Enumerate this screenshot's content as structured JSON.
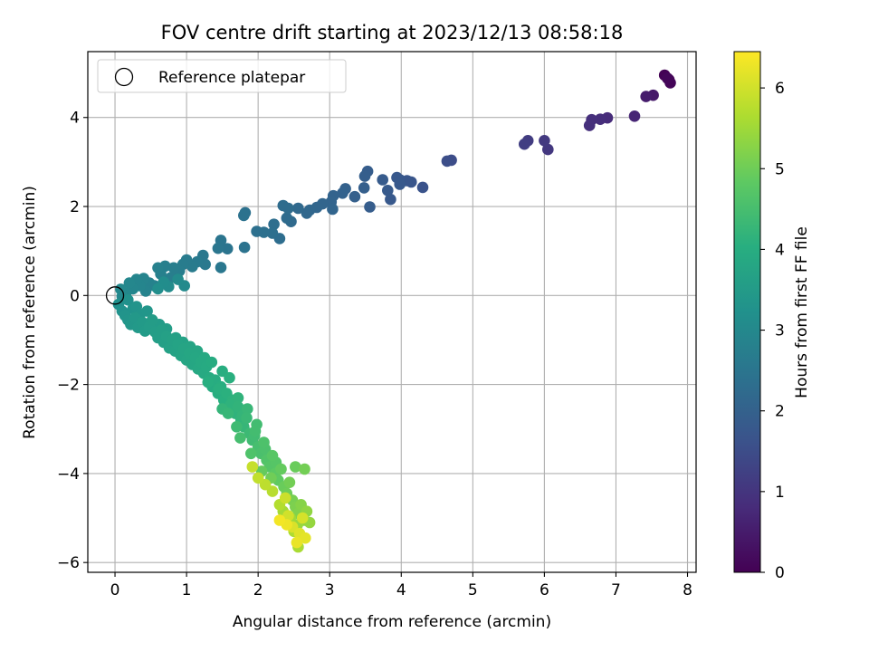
{
  "chart_data": {
    "type": "scatter",
    "title": "FOV centre drift starting at 2023/12/13 08:58:18",
    "xlabel": "Angular distance from reference (arcmin)",
    "ylabel": "Rotation from reference (arcmin)",
    "xlim": [
      -0.38,
      8.12
    ],
    "ylim": [
      -6.22,
      5.48
    ],
    "xticks": [
      "0",
      "1",
      "2",
      "3",
      "4",
      "5",
      "6",
      "7",
      "8"
    ],
    "yticks": [
      "4",
      "2",
      "0",
      "−2",
      "−4",
      "−6"
    ],
    "grid": true,
    "legend": {
      "position": "upper-left",
      "label": "Reference platepar"
    },
    "reference_point": {
      "x": 0,
      "y": 0
    },
    "colorbar": {
      "label": "Hours from first FF file",
      "range": [
        0,
        6.45
      ],
      "ticks": [
        "0",
        "1",
        "2",
        "3",
        "4",
        "5",
        "6"
      ],
      "colormap": "viridis"
    },
    "points": [
      [
        7.68,
        4.95,
        0.02
      ],
      [
        7.74,
        4.85,
        0.05
      ],
      [
        7.76,
        4.78,
        0.08
      ],
      [
        7.72,
        4.88,
        0.1
      ],
      [
        7.52,
        4.5,
        0.45
      ],
      [
        7.42,
        4.47,
        0.5
      ],
      [
        7.26,
        4.03,
        0.7
      ],
      [
        6.88,
        3.99,
        0.8
      ],
      [
        6.78,
        3.96,
        0.85
      ],
      [
        6.66,
        3.95,
        0.88
      ],
      [
        6.63,
        3.82,
        0.9
      ],
      [
        6.05,
        3.28,
        1.05
      ],
      [
        6.0,
        3.48,
        1.08
      ],
      [
        5.77,
        3.48,
        1.15
      ],
      [
        5.72,
        3.4,
        1.18
      ],
      [
        4.7,
        3.04,
        1.5
      ],
      [
        4.64,
        3.02,
        1.52
      ],
      [
        4.3,
        2.43,
        1.65
      ],
      [
        4.14,
        2.55,
        1.7
      ],
      [
        4.08,
        2.58,
        1.72
      ],
      [
        3.98,
        2.6,
        1.75
      ],
      [
        3.94,
        2.65,
        1.76
      ],
      [
        3.98,
        2.5,
        1.78
      ],
      [
        3.85,
        2.16,
        1.8
      ],
      [
        3.81,
        2.36,
        1.82
      ],
      [
        3.74,
        2.6,
        1.84
      ],
      [
        3.56,
        1.99,
        1.88
      ],
      [
        3.53,
        2.79,
        1.9
      ],
      [
        3.49,
        2.68,
        1.92
      ],
      [
        3.48,
        2.42,
        1.93
      ],
      [
        3.35,
        2.22,
        1.96
      ],
      [
        3.22,
        2.4,
        2.0
      ],
      [
        3.18,
        2.3,
        2.02
      ],
      [
        3.05,
        2.24,
        2.05
      ],
      [
        3.02,
        2.1,
        2.06
      ],
      [
        3.04,
        1.94,
        2.08
      ],
      [
        2.9,
        2.06,
        2.1
      ],
      [
        2.82,
        1.98,
        2.12
      ],
      [
        2.72,
        1.92,
        2.15
      ],
      [
        2.68,
        1.85,
        2.17
      ],
      [
        2.56,
        1.96,
        2.2
      ],
      [
        2.46,
        1.66,
        2.22
      ],
      [
        2.4,
        1.74,
        2.24
      ],
      [
        2.35,
        2.02,
        2.26
      ],
      [
        2.42,
        1.96,
        2.27
      ],
      [
        2.3,
        1.28,
        2.3
      ],
      [
        2.22,
        1.6,
        2.32
      ],
      [
        2.2,
        1.4,
        2.34
      ],
      [
        2.08,
        1.42,
        2.36
      ],
      [
        1.98,
        1.44,
        2.38
      ],
      [
        1.82,
        1.86,
        2.4
      ],
      [
        1.8,
        1.8,
        2.42
      ],
      [
        1.81,
        1.08,
        2.44
      ],
      [
        1.57,
        1.05,
        2.47
      ],
      [
        1.48,
        1.24,
        2.5
      ],
      [
        1.44,
        1.06,
        2.52
      ],
      [
        1.48,
        0.63,
        2.55
      ],
      [
        1.23,
        0.9,
        2.57
      ],
      [
        1.26,
        0.7,
        2.6
      ],
      [
        1.15,
        0.76,
        2.62
      ],
      [
        1.08,
        0.65,
        2.64
      ],
      [
        1.0,
        0.8,
        2.66
      ],
      [
        0.95,
        0.7,
        2.68
      ],
      [
        0.9,
        0.55,
        2.7
      ],
      [
        0.82,
        0.62,
        2.72
      ],
      [
        0.78,
        0.4,
        2.74
      ],
      [
        0.7,
        0.66,
        2.76
      ],
      [
        0.64,
        0.48,
        2.78
      ],
      [
        0.6,
        0.62,
        2.8
      ],
      [
        0.55,
        0.22,
        2.82
      ],
      [
        0.48,
        0.28,
        2.84
      ],
      [
        0.43,
        0.1,
        2.86
      ],
      [
        0.4,
        0.38,
        2.88
      ],
      [
        0.35,
        0.22,
        2.9
      ],
      [
        0.3,
        0.36,
        2.92
      ],
      [
        0.25,
        0.15,
        2.94
      ],
      [
        0.2,
        0.28,
        2.96
      ],
      [
        0.15,
        0.05,
        2.98
      ],
      [
        0.1,
        -0.02,
        3.0
      ],
      [
        0.08,
        0.14,
        3.02
      ],
      [
        0.97,
        0.22,
        3.05
      ],
      [
        0.88,
        0.36,
        3.07
      ],
      [
        0.75,
        0.2,
        3.1
      ],
      [
        0.68,
        0.3,
        3.12
      ],
      [
        0.6,
        0.15,
        3.14
      ],
      [
        0.05,
        -0.2,
        3.2
      ],
      [
        0.1,
        -0.35,
        3.25
      ],
      [
        0.14,
        -0.45,
        3.3
      ],
      [
        0.18,
        -0.55,
        3.35
      ],
      [
        0.22,
        -0.65,
        3.4
      ],
      [
        0.28,
        -0.5,
        3.42
      ],
      [
        0.32,
        -0.72,
        3.45
      ],
      [
        0.38,
        -0.6,
        3.48
      ],
      [
        0.42,
        -0.8,
        3.5
      ],
      [
        0.48,
        -0.7,
        3.52
      ],
      [
        0.52,
        -0.55,
        3.54
      ],
      [
        0.56,
        -0.82,
        3.56
      ],
      [
        0.6,
        -0.95,
        3.58
      ],
      [
        0.65,
        -0.78,
        3.6
      ],
      [
        0.68,
        -1.05,
        3.62
      ],
      [
        0.72,
        -0.92,
        3.64
      ],
      [
        0.76,
        -1.18,
        3.66
      ],
      [
        0.8,
        -1.0,
        3.68
      ],
      [
        0.84,
        -1.25,
        3.7
      ],
      [
        0.88,
        -1.1,
        3.72
      ],
      [
        0.92,
        -1.35,
        3.74
      ],
      [
        0.96,
        -1.2,
        3.76
      ],
      [
        1.0,
        -1.45,
        3.78
      ],
      [
        1.04,
        -1.3,
        3.8
      ],
      [
        1.08,
        -1.55,
        3.82
      ],
      [
        1.12,
        -1.4,
        3.84
      ],
      [
        1.16,
        -1.65,
        3.86
      ],
      [
        1.2,
        -1.5,
        3.88
      ],
      [
        1.24,
        -1.75,
        3.9
      ],
      [
        1.28,
        -1.6,
        3.92
      ],
      [
        1.32,
        -1.85,
        3.94
      ],
      [
        1.36,
        -2.05,
        3.96
      ],
      [
        1.4,
        -1.9,
        3.98
      ],
      [
        1.44,
        -2.2,
        4.0
      ],
      [
        1.48,
        -2.05,
        4.02
      ],
      [
        1.52,
        -2.35,
        4.05
      ],
      [
        1.56,
        -2.2,
        4.08
      ],
      [
        1.6,
        -2.5,
        4.1
      ],
      [
        1.64,
        -2.35,
        4.12
      ],
      [
        1.68,
        -2.65,
        4.15
      ],
      [
        1.72,
        -2.5,
        4.18
      ],
      [
        1.76,
        -2.8,
        4.2
      ],
      [
        1.8,
        -2.95,
        4.25
      ],
      [
        1.84,
        -2.75,
        4.3
      ],
      [
        1.88,
        -3.1,
        4.35
      ],
      [
        1.92,
        -3.25,
        4.4
      ],
      [
        1.96,
        -3.05,
        4.45
      ],
      [
        2.0,
        -3.4,
        4.5
      ],
      [
        2.04,
        -3.55,
        4.55
      ],
      [
        2.08,
        -3.3,
        4.6
      ],
      [
        2.12,
        -3.7,
        4.65
      ],
      [
        2.16,
        -3.85,
        4.7
      ],
      [
        2.2,
        -3.6,
        4.75
      ],
      [
        2.24,
        -4.0,
        4.8
      ],
      [
        2.28,
        -4.15,
        4.85
      ],
      [
        2.32,
        -3.9,
        4.9
      ],
      [
        2.36,
        -4.3,
        4.95
      ],
      [
        2.4,
        -4.45,
        5.0
      ],
      [
        2.44,
        -4.2,
        5.05
      ],
      [
        2.48,
        -4.6,
        5.1
      ],
      [
        2.52,
        -4.75,
        5.15
      ],
      [
        2.56,
        -4.9,
        5.2
      ],
      [
        2.6,
        -4.7,
        5.25
      ],
      [
        2.64,
        -5.05,
        5.3
      ],
      [
        2.68,
        -4.85,
        5.35
      ],
      [
        2.72,
        -5.1,
        5.4
      ],
      [
        2.55,
        -5.15,
        5.45
      ],
      [
        2.45,
        -5.0,
        5.5
      ],
      [
        2.35,
        -4.85,
        5.55
      ],
      [
        2.56,
        -5.65,
        5.6
      ],
      [
        2.5,
        -5.3,
        5.65
      ],
      [
        2.3,
        -4.7,
        5.7
      ],
      [
        2.2,
        -4.4,
        5.75
      ],
      [
        2.1,
        -4.25,
        5.8
      ],
      [
        2.0,
        -4.1,
        5.85
      ],
      [
        1.92,
        -3.85,
        5.9
      ],
      [
        2.38,
        -4.55,
        5.95
      ],
      [
        2.42,
        -4.95,
        6.0
      ],
      [
        2.62,
        -5.0,
        6.05
      ],
      [
        2.48,
        -5.2,
        6.1
      ],
      [
        2.58,
        -5.35,
        6.15
      ],
      [
        2.66,
        -5.45,
        6.2
      ],
      [
        2.54,
        -5.55,
        6.25
      ],
      [
        2.4,
        -5.15,
        6.3
      ],
      [
        2.3,
        -5.05,
        6.35
      ],
      [
        1.3,
        -1.95,
        4.02
      ],
      [
        1.45,
        -2.1,
        4.06
      ],
      [
        1.62,
        -2.45,
        4.14
      ],
      [
        1.78,
        -2.7,
        4.22
      ],
      [
        1.95,
        -3.15,
        4.42
      ],
      [
        2.1,
        -3.45,
        4.58
      ],
      [
        2.25,
        -3.75,
        4.72
      ],
      [
        2.65,
        -3.9,
        5.05
      ],
      [
        2.52,
        -3.85,
        4.95
      ],
      [
        2.18,
        -4.1,
        5.02
      ],
      [
        2.05,
        -3.95,
        4.9
      ],
      [
        1.9,
        -3.55,
        4.62
      ],
      [
        1.75,
        -3.2,
        4.48
      ],
      [
        1.7,
        -2.95,
        4.38
      ],
      [
        1.58,
        -2.65,
        4.26
      ],
      [
        1.5,
        -2.55,
        4.22
      ],
      [
        0.45,
        -0.35,
        3.36
      ],
      [
        0.3,
        -0.25,
        3.3
      ],
      [
        0.18,
        -0.1,
        3.22
      ],
      [
        0.25,
        -0.3,
        3.28
      ],
      [
        0.35,
        -0.42,
        3.34
      ],
      [
        0.62,
        -0.65,
        3.5
      ],
      [
        0.72,
        -0.75,
        3.56
      ],
      [
        0.85,
        -0.95,
        3.64
      ],
      [
        0.95,
        -1.05,
        3.7
      ],
      [
        1.05,
        -1.15,
        3.76
      ],
      [
        1.15,
        -1.25,
        3.82
      ],
      [
        1.25,
        -1.4,
        3.88
      ],
      [
        1.35,
        -1.5,
        3.94
      ],
      [
        1.5,
        -1.7,
        4.0
      ],
      [
        1.6,
        -1.85,
        4.06
      ],
      [
        1.72,
        -2.3,
        4.16
      ],
      [
        1.85,
        -2.55,
        4.28
      ],
      [
        1.98,
        -2.9,
        4.44
      ]
    ]
  }
}
